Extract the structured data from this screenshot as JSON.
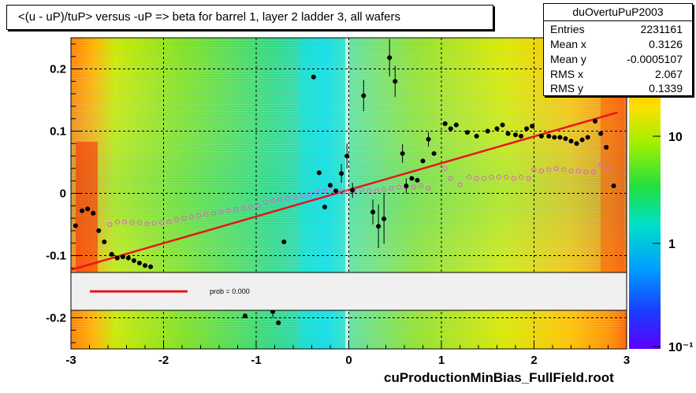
{
  "title": "<(u - uP)/tuP> versus  -uP => beta for barrel 1, layer 2 ladder 3, all wafers",
  "stats": {
    "name": "duOvertuPuP2003",
    "rows": [
      {
        "label": "Entries",
        "value": "2231161"
      },
      {
        "label": "Mean x",
        "value": "0.3126"
      },
      {
        "label": "Mean y",
        "value": "-0.0005107"
      },
      {
        "label": "RMS x",
        "value": "2.067"
      },
      {
        "label": "RMS y",
        "value": "0.1339"
      }
    ]
  },
  "legend": {
    "text": "prob = 0.000",
    "line_color": "#e8141a"
  },
  "footer": "cuProductionMinBias_FullField.root",
  "colors": {
    "black_points": "#000000",
    "open_points": "#e060c8",
    "fit_line": "#e8141a",
    "legend_bg": "#f0f0f0"
  },
  "chart_data": {
    "type": "scatter",
    "xlim": [
      -3,
      3
    ],
    "ylim": [
      -0.25,
      0.25
    ],
    "x_ticks": [
      "-3",
      "-2",
      "-1",
      "0",
      "1",
      "2",
      "3"
    ],
    "y_ticks": [
      "-0.2",
      "-0.1",
      "0",
      "0.1",
      "0.2"
    ],
    "z_ticks": [
      "10",
      "1",
      "10⁻¹"
    ],
    "z_scale": "log",
    "grid": true,
    "fit_line": {
      "x": [
        -3,
        2.9
      ],
      "y": [
        -0.123,
        0.13
      ]
    },
    "profile_black": [
      [
        -2.95,
        -0.052
      ],
      [
        -2.88,
        -0.028
      ],
      [
        -2.82,
        -0.025
      ],
      [
        -2.76,
        -0.032
      ],
      [
        -2.7,
        -0.06
      ],
      [
        -2.64,
        -0.078
      ],
      [
        -2.56,
        -0.098
      ],
      [
        -2.5,
        -0.104
      ],
      [
        -2.44,
        -0.102
      ],
      [
        -2.38,
        -0.104
      ],
      [
        -2.32,
        -0.108
      ],
      [
        -2.26,
        -0.112
      ],
      [
        -2.2,
        -0.116
      ],
      [
        -2.14,
        -0.118
      ],
      [
        -1.12,
        -0.197
      ],
      [
        -0.82,
        -0.19
      ],
      [
        -0.76,
        -0.208
      ],
      [
        -0.7,
        -0.078
      ],
      [
        -0.38,
        0.187
      ],
      [
        -0.32,
        0.033
      ],
      [
        -0.26,
        -0.022
      ],
      [
        -0.2,
        0.013
      ],
      [
        -0.14,
        0.004
      ],
      [
        -0.08,
        0.032
      ],
      [
        -0.02,
        0.06
      ],
      [
        0.04,
        0.005
      ],
      [
        0.16,
        0.157
      ],
      [
        0.26,
        -0.03
      ],
      [
        0.32,
        -0.053
      ],
      [
        0.38,
        -0.041
      ],
      [
        0.44,
        0.218
      ],
      [
        0.5,
        0.18
      ],
      [
        0.58,
        0.064
      ],
      [
        0.62,
        0.012
      ],
      [
        0.68,
        0.024
      ],
      [
        0.74,
        0.021
      ],
      [
        0.8,
        0.052
      ],
      [
        0.86,
        0.087
      ],
      [
        0.92,
        0.064
      ],
      [
        1.04,
        0.112
      ],
      [
        1.1,
        0.104
      ],
      [
        1.16,
        0.11
      ],
      [
        1.28,
        0.098
      ],
      [
        1.38,
        0.092
      ],
      [
        1.5,
        0.1
      ],
      [
        1.6,
        0.104
      ],
      [
        1.66,
        0.11
      ],
      [
        1.72,
        0.096
      ],
      [
        1.8,
        0.094
      ],
      [
        1.86,
        0.092
      ],
      [
        1.92,
        0.104
      ],
      [
        1.98,
        0.108
      ],
      [
        2.08,
        0.092
      ],
      [
        2.16,
        0.092
      ],
      [
        2.22,
        0.09
      ],
      [
        2.28,
        0.09
      ],
      [
        2.34,
        0.088
      ],
      [
        2.4,
        0.084
      ],
      [
        2.46,
        0.08
      ],
      [
        2.52,
        0.086
      ],
      [
        2.58,
        0.09
      ],
      [
        2.66,
        0.116
      ],
      [
        2.72,
        0.096
      ],
      [
        2.78,
        0.074
      ],
      [
        2.86,
        0.012
      ]
    ],
    "profile_black_errors": {
      "-0.82": 0.01,
      "0.16": 0.025,
      "0.26": 0.02,
      "0.32": 0.035,
      "0.38": 0.04,
      "0.44": 0.03,
      "0.50": 0.025,
      "0.58": 0.015,
      "0.62": 0.012,
      "0.86": 0.012,
      "-0.08": 0.015,
      "-0.02": 0.02,
      "0.04": 0.012
    },
    "profile_open": [
      [
        -2.58,
        -0.05
      ],
      [
        -2.5,
        -0.046
      ],
      [
        -2.42,
        -0.046
      ],
      [
        -2.34,
        -0.047
      ],
      [
        -2.26,
        -0.047
      ],
      [
        -2.18,
        -0.049
      ],
      [
        -2.1,
        -0.048
      ],
      [
        -2.02,
        -0.047
      ],
      [
        -1.94,
        -0.046
      ],
      [
        -1.86,
        -0.042
      ],
      [
        -1.78,
        -0.04
      ],
      [
        -1.7,
        -0.038
      ],
      [
        -1.62,
        -0.036
      ],
      [
        -1.54,
        -0.034
      ],
      [
        -1.46,
        -0.032
      ],
      [
        -1.38,
        -0.03
      ],
      [
        -1.3,
        -0.028
      ],
      [
        -1.22,
        -0.026
      ],
      [
        -1.14,
        -0.024
      ],
      [
        -1.06,
        -0.022
      ],
      [
        -0.98,
        -0.02
      ],
      [
        -0.9,
        -0.014
      ],
      [
        -0.82,
        -0.012
      ],
      [
        -0.74,
        -0.01
      ],
      [
        -0.66,
        -0.008
      ],
      [
        -0.58,
        -0.006
      ],
      [
        -0.5,
        -0.004
      ],
      [
        -0.42,
        -0.002
      ],
      [
        -0.34,
        0.002
      ],
      [
        -0.26,
        0.004
      ],
      [
        -0.18,
        0.006
      ],
      [
        -0.1,
        0.004
      ],
      [
        -0.02,
        0.002
      ],
      [
        0.06,
        0.004
      ],
      [
        0.14,
        0.006
      ],
      [
        0.22,
        0.004
      ],
      [
        0.3,
        0.004
      ],
      [
        0.38,
        0.006
      ],
      [
        0.46,
        0.008
      ],
      [
        0.54,
        0.01
      ],
      [
        0.62,
        0.01
      ],
      [
        0.7,
        0.01
      ],
      [
        0.78,
        0.012
      ],
      [
        0.86,
        0.008
      ],
      [
        1.04,
        0.04
      ],
      [
        1.1,
        0.024
      ],
      [
        1.2,
        0.014
      ],
      [
        1.3,
        0.026
      ],
      [
        1.38,
        0.024
      ],
      [
        1.46,
        0.024
      ],
      [
        1.54,
        0.026
      ],
      [
        1.62,
        0.026
      ],
      [
        1.7,
        0.026
      ],
      [
        1.78,
        0.024
      ],
      [
        1.86,
        0.026
      ],
      [
        1.94,
        0.024
      ],
      [
        2.0,
        0.038
      ],
      [
        2.08,
        0.036
      ],
      [
        2.16,
        0.038
      ],
      [
        2.24,
        0.04
      ],
      [
        2.32,
        0.038
      ],
      [
        2.4,
        0.036
      ],
      [
        2.48,
        0.036
      ],
      [
        2.56,
        0.034
      ],
      [
        2.64,
        0.034
      ],
      [
        2.72,
        0.046
      ],
      [
        2.8,
        0.04
      ]
    ]
  }
}
